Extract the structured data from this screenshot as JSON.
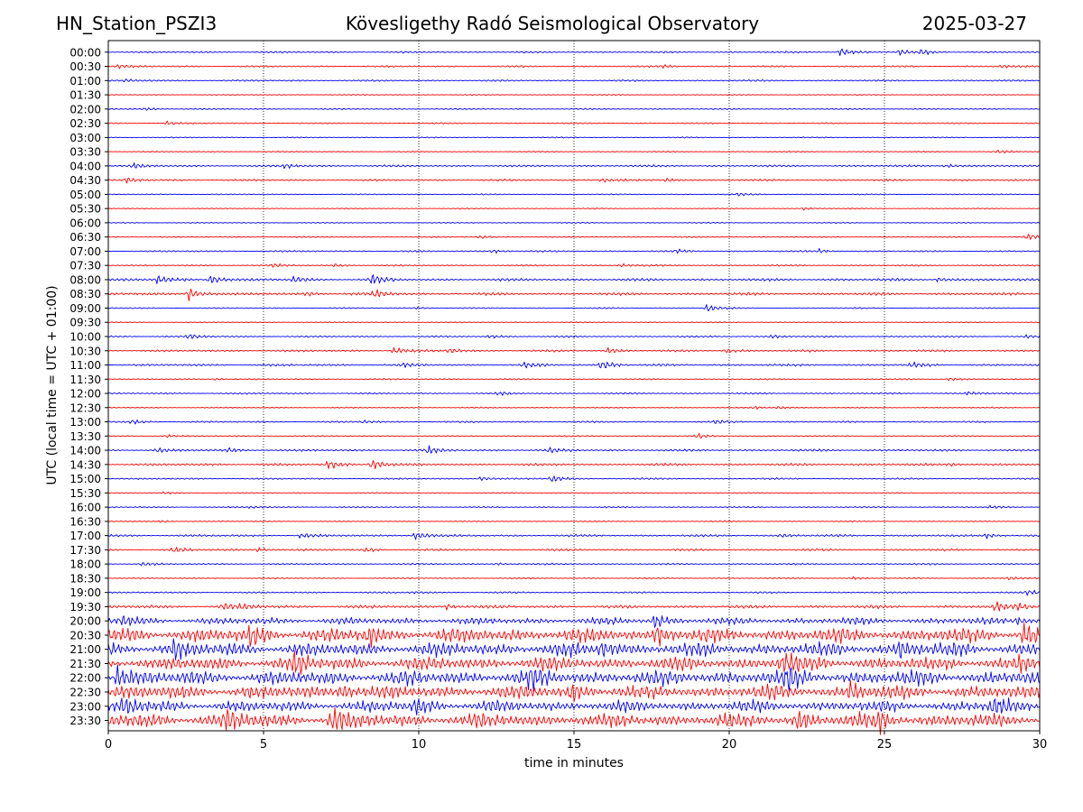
{
  "header": {
    "station": "HN_Station_PSZI3",
    "observatory": "Kövesligethy Radó Seismological Observatory",
    "date": "2025-03-27"
  },
  "chart_data": {
    "type": "line",
    "title": "Kövesligethy Radó Seismological Observatory",
    "xlabel": "time in minutes",
    "ylabel": "UTC (local time = UTC + 01:00)",
    "xlim": [
      0,
      30
    ],
    "xticks": [
      "0",
      "5",
      "10",
      "15",
      "20",
      "25",
      "30"
    ],
    "grid": "vertical dotted lines at 5, 10, 15, 20, 25 minutes",
    "series_colors": [
      "#0000ff",
      "#ff0000"
    ],
    "rows": [
      {
        "label": "00:00",
        "color": "#0000ff",
        "activity": 0.15,
        "events": [
          [
            23.6,
            0.7
          ],
          [
            25.5,
            0.4
          ],
          [
            26.2,
            0.35
          ]
        ]
      },
      {
        "label": "00:30",
        "color": "#ff0000",
        "activity": 0.15,
        "events": [
          [
            0.3,
            0.3
          ],
          [
            17.9,
            0.25
          ],
          [
            28.8,
            0.3
          ]
        ]
      },
      {
        "label": "01:00",
        "color": "#0000ff",
        "activity": 0.15,
        "events": [
          [
            0.6,
            0.25
          ]
        ]
      },
      {
        "label": "01:30",
        "color": "#ff0000",
        "activity": 0.1,
        "events": []
      },
      {
        "label": "02:00",
        "color": "#0000ff",
        "activity": 0.12,
        "events": [
          [
            1.2,
            0.25
          ]
        ]
      },
      {
        "label": "02:30",
        "color": "#ff0000",
        "activity": 0.12,
        "events": [
          [
            1.9,
            0.3
          ]
        ]
      },
      {
        "label": "03:00",
        "color": "#0000ff",
        "activity": 0.1,
        "events": []
      },
      {
        "label": "03:30",
        "color": "#ff0000",
        "activity": 0.12,
        "events": [
          [
            28.7,
            0.25
          ]
        ]
      },
      {
        "label": "04:00",
        "color": "#0000ff",
        "activity": 0.18,
        "events": [
          [
            0.8,
            0.45
          ],
          [
            5.7,
            0.4
          ],
          [
            27.0,
            0.35
          ]
        ]
      },
      {
        "label": "04:30",
        "color": "#ff0000",
        "activity": 0.18,
        "events": [
          [
            0.6,
            0.4
          ],
          [
            15.9,
            0.3
          ],
          [
            18.0,
            0.3
          ]
        ]
      },
      {
        "label": "05:00",
        "color": "#0000ff",
        "activity": 0.1,
        "events": [
          [
            20.3,
            0.25
          ]
        ]
      },
      {
        "label": "05:30",
        "color": "#ff0000",
        "activity": 0.1,
        "events": [
          [
            22.4,
            0.2
          ]
        ]
      },
      {
        "label": "06:00",
        "color": "#0000ff",
        "activity": 0.1,
        "events": []
      },
      {
        "label": "06:30",
        "color": "#ff0000",
        "activity": 0.12,
        "events": [
          [
            29.6,
            0.6
          ],
          [
            12.0,
            0.25
          ]
        ]
      },
      {
        "label": "07:00",
        "color": "#0000ff",
        "activity": 0.15,
        "events": [
          [
            12.4,
            0.3
          ],
          [
            22.9,
            0.3
          ],
          [
            18.3,
            0.25
          ]
        ]
      },
      {
        "label": "07:30",
        "color": "#ff0000",
        "activity": 0.15,
        "events": [
          [
            5.3,
            0.3
          ],
          [
            7.3,
            0.25
          ],
          [
            16.5,
            0.25
          ]
        ]
      },
      {
        "label": "08:00",
        "color": "#0000ff",
        "activity": 0.25,
        "events": [
          [
            1.6,
            0.7
          ],
          [
            3.3,
            0.8
          ],
          [
            6.0,
            0.5
          ],
          [
            8.5,
            0.9
          ],
          [
            26.7,
            0.35
          ]
        ]
      },
      {
        "label": "08:30",
        "color": "#ff0000",
        "activity": 0.25,
        "events": [
          [
            2.6,
            1.0
          ],
          [
            8.6,
            0.6
          ],
          [
            6.4,
            0.3
          ]
        ]
      },
      {
        "label": "09:00",
        "color": "#0000ff",
        "activity": 0.12,
        "events": [
          [
            19.3,
            0.6
          ],
          [
            9.9,
            0.2
          ]
        ]
      },
      {
        "label": "09:30",
        "color": "#ff0000",
        "activity": 0.1,
        "events": []
      },
      {
        "label": "10:00",
        "color": "#0000ff",
        "activity": 0.15,
        "events": [
          [
            2.6,
            0.4
          ],
          [
            12.3,
            0.25
          ],
          [
            21.4,
            0.3
          ],
          [
            29.6,
            0.3
          ]
        ]
      },
      {
        "label": "10:30",
        "color": "#ff0000",
        "activity": 0.2,
        "events": [
          [
            9.2,
            0.6
          ],
          [
            11.0,
            0.4
          ],
          [
            16.1,
            0.4
          ],
          [
            19.9,
            0.35
          ]
        ]
      },
      {
        "label": "11:00",
        "color": "#0000ff",
        "activity": 0.2,
        "events": [
          [
            15.9,
            0.9
          ],
          [
            13.4,
            0.4
          ],
          [
            25.9,
            0.45
          ],
          [
            9.5,
            0.3
          ]
        ]
      },
      {
        "label": "11:30",
        "color": "#ff0000",
        "activity": 0.12,
        "events": [
          [
            3.5,
            0.2
          ],
          [
            27.1,
            0.25
          ]
        ]
      },
      {
        "label": "12:00",
        "color": "#0000ff",
        "activity": 0.15,
        "events": [
          [
            12.6,
            0.25
          ],
          [
            27.7,
            0.3
          ]
        ]
      },
      {
        "label": "12:30",
        "color": "#ff0000",
        "activity": 0.12,
        "events": [
          [
            20.8,
            0.25
          ],
          [
            21.6,
            0.25
          ]
        ]
      },
      {
        "label": "13:00",
        "color": "#0000ff",
        "activity": 0.15,
        "events": [
          [
            0.8,
            0.3
          ],
          [
            8.2,
            0.25
          ],
          [
            19.6,
            0.3
          ]
        ]
      },
      {
        "label": "13:30",
        "color": "#ff0000",
        "activity": 0.12,
        "events": [
          [
            1.9,
            0.25
          ],
          [
            19.0,
            0.35
          ]
        ]
      },
      {
        "label": "14:00",
        "color": "#0000ff",
        "activity": 0.2,
        "events": [
          [
            10.3,
            0.6
          ],
          [
            14.2,
            0.4
          ],
          [
            1.6,
            0.3
          ],
          [
            3.9,
            0.3
          ]
        ]
      },
      {
        "label": "14:30",
        "color": "#ff0000",
        "activity": 0.22,
        "events": [
          [
            7.1,
            0.8
          ],
          [
            8.5,
            1.0
          ],
          [
            27.1,
            0.25
          ]
        ]
      },
      {
        "label": "15:00",
        "color": "#0000ff",
        "activity": 0.15,
        "events": [
          [
            14.3,
            0.6
          ],
          [
            12.0,
            0.35
          ]
        ]
      },
      {
        "label": "15:30",
        "color": "#ff0000",
        "activity": 0.1,
        "events": [
          [
            1.8,
            0.15
          ]
        ]
      },
      {
        "label": "16:00",
        "color": "#0000ff",
        "activity": 0.12,
        "events": [
          [
            4.6,
            0.2
          ],
          [
            28.4,
            0.2
          ]
        ]
      },
      {
        "label": "16:30",
        "color": "#ff0000",
        "activity": 0.12,
        "events": [
          [
            1.7,
            0.2
          ]
        ]
      },
      {
        "label": "17:00",
        "color": "#0000ff",
        "activity": 0.2,
        "events": [
          [
            9.9,
            0.7
          ],
          [
            6.2,
            0.35
          ],
          [
            21.7,
            0.3
          ],
          [
            28.3,
            0.35
          ]
        ]
      },
      {
        "label": "17:30",
        "color": "#ff0000",
        "activity": 0.2,
        "events": [
          [
            2.1,
            0.45
          ],
          [
            4.8,
            0.4
          ],
          [
            8.3,
            0.3
          ]
        ]
      },
      {
        "label": "18:00",
        "color": "#0000ff",
        "activity": 0.15,
        "events": [
          [
            1.1,
            0.3
          ],
          [
            12.5,
            0.2
          ]
        ]
      },
      {
        "label": "18:30",
        "color": "#ff0000",
        "activity": 0.12,
        "events": [
          [
            29.0,
            0.25
          ],
          [
            24.0,
            0.2
          ]
        ]
      },
      {
        "label": "19:00",
        "color": "#0000ff",
        "activity": 0.15,
        "events": [
          [
            29.6,
            0.45
          ],
          [
            9.8,
            0.2
          ]
        ]
      },
      {
        "label": "19:30",
        "color": "#ff0000",
        "activity": 0.3,
        "events": [
          [
            3.7,
            0.6
          ],
          [
            4.3,
            0.5
          ],
          [
            10.9,
            0.4
          ],
          [
            28.6,
            0.8
          ],
          [
            29.3,
            0.6
          ]
        ]
      },
      {
        "label": "20:00",
        "color": "#0000ff",
        "activity": 0.65,
        "events": [
          [
            17.6,
            1.0
          ],
          [
            0.4,
            0.8
          ],
          [
            29.3,
            0.6
          ]
        ]
      },
      {
        "label": "20:30",
        "color": "#ff0000",
        "activity": 1.3,
        "events": [
          [
            4.6,
            1.5
          ],
          [
            8.4,
            1.3
          ],
          [
            17.7,
            1.4
          ],
          [
            29.5,
            1.5
          ]
        ]
      },
      {
        "label": "21:00",
        "color": "#0000ff",
        "activity": 1.25,
        "events": [
          [
            2.1,
            1.2
          ],
          [
            15.9,
            1.3
          ],
          [
            25.5,
            1.2
          ]
        ]
      },
      {
        "label": "21:30",
        "color": "#ff0000",
        "activity": 1.25,
        "events": [
          [
            6.0,
            1.3
          ],
          [
            21.7,
            1.4
          ],
          [
            29.3,
            1.2
          ]
        ]
      },
      {
        "label": "22:00",
        "color": "#0000ff",
        "activity": 1.35,
        "events": [
          [
            0.3,
            1.5
          ],
          [
            13.6,
            1.2
          ],
          [
            21.9,
            1.4
          ]
        ]
      },
      {
        "label": "22:30",
        "color": "#ff0000",
        "activity": 1.25,
        "events": [
          [
            7.5,
            1.5
          ],
          [
            14.9,
            1.3
          ],
          [
            23.9,
            1.4
          ]
        ]
      },
      {
        "label": "23:00",
        "color": "#0000ff",
        "activity": 1.05,
        "events": [
          [
            9.9,
            1.3
          ],
          [
            0.5,
            1.2
          ],
          [
            28.5,
            1.2
          ]
        ]
      },
      {
        "label": "23:30",
        "color": "#ff0000",
        "activity": 1.3,
        "events": [
          [
            3.8,
            1.5
          ],
          [
            7.2,
            1.4
          ],
          [
            22.2,
            1.4
          ],
          [
            24.8,
            1.5
          ]
        ]
      }
    ]
  }
}
